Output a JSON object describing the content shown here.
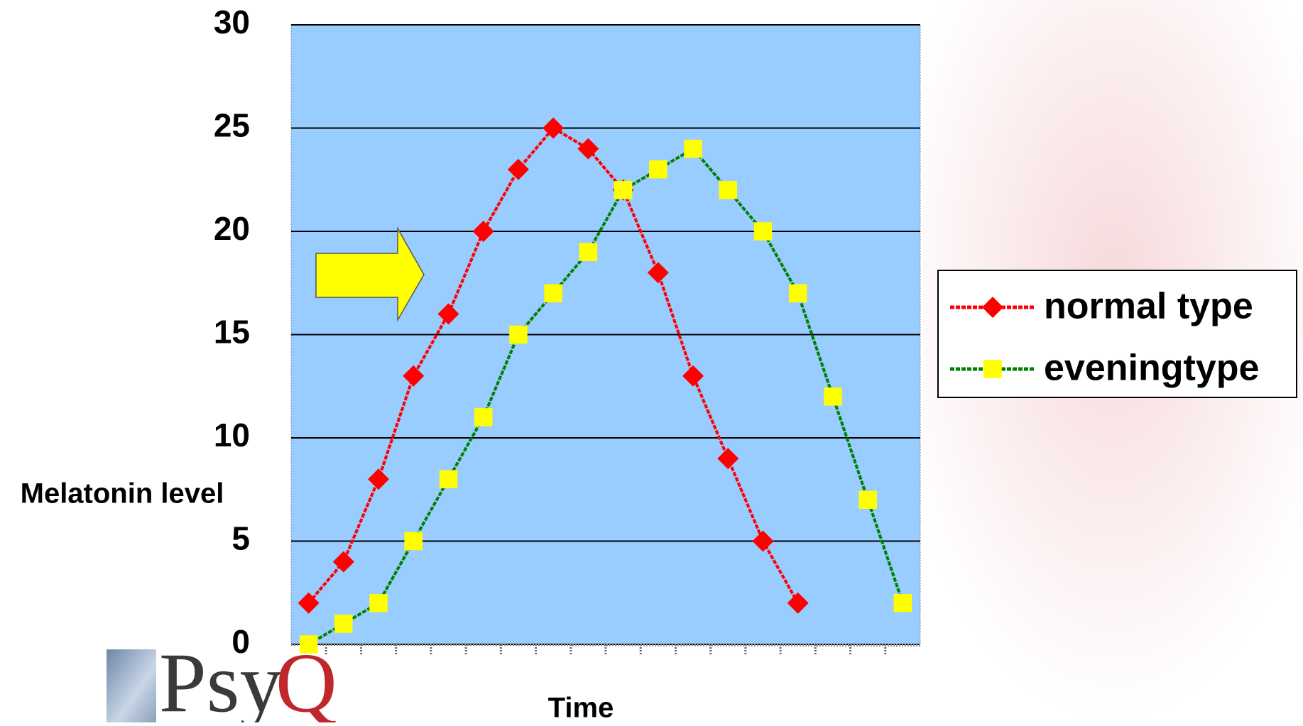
{
  "chart_data": {
    "type": "line",
    "y_label": "Melatonin level",
    "x_label": "Time",
    "categories": [
      null,
      null,
      null,
      null,
      null,
      null,
      null,
      null,
      null,
      null,
      null,
      null,
      null,
      null,
      null,
      null,
      null,
      null
    ],
    "series": [
      {
        "name": "normal type",
        "color": "#ff0000",
        "marker": "diamond",
        "values": [
          2,
          4,
          8,
          13,
          16,
          20,
          23,
          25,
          24,
          22,
          18,
          13,
          9,
          5,
          2,
          null,
          null,
          null
        ]
      },
      {
        "name": "eveningtype",
        "color": "#008000",
        "marker_color": "#ffff00",
        "marker": "square",
        "values": [
          0,
          1,
          2,
          5,
          8,
          11,
          15,
          17,
          19,
          22,
          23,
          24,
          22,
          20,
          17,
          12,
          7,
          2
        ]
      }
    ],
    "ylim": [
      0,
      30
    ],
    "yticks": [
      0,
      5,
      10,
      15,
      20,
      25,
      30
    ],
    "grid": true
  },
  "logo": {
    "text": "Psy",
    "accent": "Q"
  }
}
